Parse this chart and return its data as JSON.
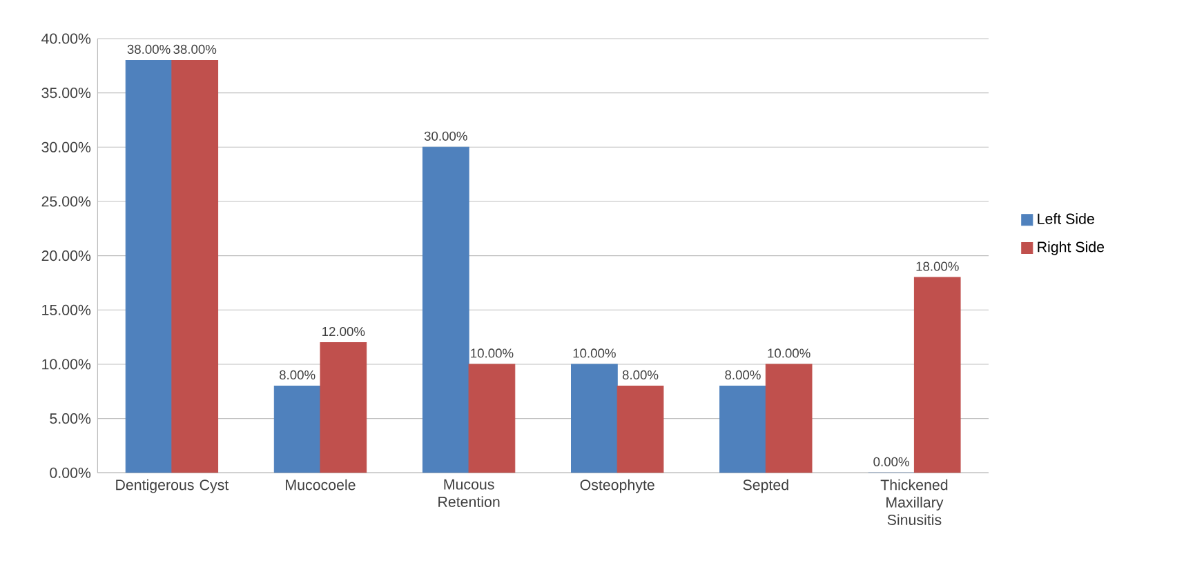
{
  "chart_data": {
    "type": "bar",
    "categories": [
      "Dentigerous Cyst",
      "Mucocoele",
      "Mucous Retention",
      "Osteophyte",
      "Septed",
      "Thickened Maxillary Sinusitis"
    ],
    "series": [
      {
        "name": "Left Side",
        "color": "#4f81bd",
        "values": [
          38,
          8,
          30,
          10,
          8,
          0
        ],
        "value_labels": [
          "38.00%",
          "8.00%",
          "30.00%",
          "10.00%",
          "8.00%",
          "0.00%"
        ]
      },
      {
        "name": "Right Side",
        "color": "#c0504d",
        "values": [
          38,
          12,
          10,
          8,
          10,
          18
        ],
        "value_labels": [
          "38.00%",
          "12.00%",
          "10.00%",
          "8.00%",
          "10.00%",
          "18.00%"
        ]
      }
    ],
    "ylim": [
      0,
      40
    ],
    "yticks": [
      {
        "value": 0,
        "label": "0.00%"
      },
      {
        "value": 5,
        "label": "5.00%"
      },
      {
        "value": 10,
        "label": "10.00%"
      },
      {
        "value": 15,
        "label": "15.00%"
      },
      {
        "value": 20,
        "label": "20.00%"
      },
      {
        "value": 25,
        "label": "25.00%"
      },
      {
        "value": 30,
        "label": "30.00%"
      },
      {
        "value": 35,
        "label": "35.00%"
      },
      {
        "value": 40,
        "label": "40.00%"
      }
    ],
    "grid": "y",
    "legend": "right"
  }
}
